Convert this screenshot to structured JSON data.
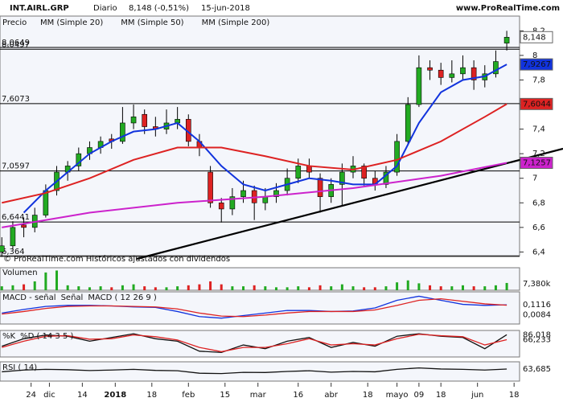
{
  "chart_data": {
    "type": "candlestick",
    "title": "INT.AIRL.GRP",
    "period": "Diario",
    "last_quote": "8,148 (-0,51%)",
    "date": "15-jun-2018",
    "site": "www.ProRealTime.com",
    "price_label": "Precio",
    "footer": "© ProRealTime.com  Históricos ajustados con dividendos",
    "up_color": "#22aa22",
    "down_color": "#dd2222",
    "x": [
      0,
      3,
      6,
      9,
      12,
      15,
      18,
      21,
      24,
      27,
      30,
      33,
      36,
      39,
      42,
      45,
      48,
      51,
      54,
      57,
      60,
      63,
      66,
      69,
      72,
      75,
      78,
      81,
      84,
      87,
      90,
      93,
      96,
      99,
      102,
      105,
      108,
      111,
      114,
      117,
      120,
      123,
      126,
      129,
      132,
      135,
      138
    ],
    "ohlc": [
      [
        6.4,
        6.52,
        6.36,
        6.45
      ],
      [
        6.45,
        6.65,
        6.42,
        6.6
      ],
      [
        6.62,
        6.68,
        6.52,
        6.6
      ],
      [
        6.6,
        6.76,
        6.56,
        6.7
      ],
      [
        6.7,
        6.95,
        6.68,
        6.9
      ],
      [
        6.9,
        7.1,
        6.86,
        7.05
      ],
      [
        7.05,
        7.14,
        6.98,
        7.1
      ],
      [
        7.1,
        7.25,
        7.06,
        7.2
      ],
      [
        7.2,
        7.3,
        7.15,
        7.25
      ],
      [
        7.25,
        7.34,
        7.2,
        7.3
      ],
      [
        7.32,
        7.36,
        7.24,
        7.3
      ],
      [
        7.3,
        7.58,
        7.28,
        7.45
      ],
      [
        7.45,
        7.6,
        7.4,
        7.5
      ],
      [
        7.52,
        7.56,
        7.36,
        7.42
      ],
      [
        7.42,
        7.5,
        7.34,
        7.4
      ],
      [
        7.4,
        7.56,
        7.36,
        7.45
      ],
      [
        7.45,
        7.58,
        7.4,
        7.48
      ],
      [
        7.48,
        7.52,
        7.26,
        7.3
      ],
      [
        7.3,
        7.36,
        7.18,
        7.25
      ],
      [
        7.05,
        7.1,
        6.76,
        6.8
      ],
      [
        6.8,
        6.84,
        6.64,
        6.75
      ],
      [
        6.75,
        6.92,
        6.7,
        6.85
      ],
      [
        6.85,
        6.98,
        6.8,
        6.9
      ],
      [
        6.9,
        6.94,
        6.66,
        6.8
      ],
      [
        6.8,
        6.92,
        6.74,
        6.85
      ],
      [
        6.85,
        6.96,
        6.8,
        6.9
      ],
      [
        6.9,
        7.08,
        6.86,
        7.0
      ],
      [
        7.0,
        7.16,
        6.96,
        7.1
      ],
      [
        7.1,
        7.16,
        7.0,
        7.05
      ],
      [
        7.0,
        7.04,
        6.72,
        6.85
      ],
      [
        6.85,
        7.0,
        6.8,
        6.95
      ],
      [
        6.95,
        7.12,
        6.78,
        7.05
      ],
      [
        7.05,
        7.18,
        7.0,
        7.1
      ],
      [
        7.1,
        7.12,
        6.94,
        7.0
      ],
      [
        7.0,
        7.06,
        6.9,
        6.95
      ],
      [
        6.95,
        7.1,
        6.92,
        7.05
      ],
      [
        7.05,
        7.36,
        7.02,
        7.3
      ],
      [
        7.3,
        7.66,
        7.28,
        7.6
      ],
      [
        7.6,
        8.0,
        7.58,
        7.9
      ],
      [
        7.9,
        7.96,
        7.8,
        7.88
      ],
      [
        7.88,
        7.94,
        7.76,
        7.82
      ],
      [
        7.82,
        7.96,
        7.78,
        7.85
      ],
      [
        7.85,
        8.0,
        7.8,
        7.9
      ],
      [
        7.9,
        7.96,
        7.72,
        7.8
      ],
      [
        7.8,
        7.92,
        7.74,
        7.85
      ],
      [
        7.85,
        8.04,
        7.82,
        7.95
      ],
      [
        8.1,
        8.2,
        8.04,
        8.148
      ]
    ],
    "xlim": [
      -0.5,
      141.5
    ],
    "xticks": [
      {
        "value": 8,
        "label": "24"
      },
      {
        "value": 13,
        "label": "dic"
      },
      {
        "value": 22,
        "label": "14"
      },
      {
        "value": 31,
        "label": "2018"
      },
      {
        "value": 41,
        "label": "18"
      },
      {
        "value": 51,
        "label": "feb"
      },
      {
        "value": 61,
        "label": "15"
      },
      {
        "value": 70,
        "label": "mar"
      },
      {
        "value": 81,
        "label": "16"
      },
      {
        "value": 90,
        "label": "abr"
      },
      {
        "value": 100,
        "label": "18"
      },
      {
        "value": 108,
        "label": "mayo"
      },
      {
        "value": 114,
        "label": "09"
      },
      {
        "value": 120,
        "label": "18"
      },
      {
        "value": 130,
        "label": "jun"
      },
      {
        "value": 140,
        "label": "18"
      }
    ],
    "ylim": [
      6.37,
      8.32
    ],
    "yticks": [
      {
        "value": 8.2,
        "label": "8,2"
      },
      {
        "value": 8,
        "label": "8"
      },
      {
        "value": 7.8,
        "label": "7,8"
      },
      {
        "value": 7.6,
        "label": "7,6"
      },
      {
        "value": 7.4,
        "label": "7,4"
      },
      {
        "value": 7.2,
        "label": "7,2"
      },
      {
        "value": 7,
        "label": "7"
      },
      {
        "value": 6.8,
        "label": "6,8"
      },
      {
        "value": 6.6,
        "label": "6,6"
      },
      {
        "value": 6.4,
        "label": "6,4"
      }
    ],
    "levels": [
      {
        "value": 8.0649,
        "label": "8,0649"
      },
      {
        "value": 8.0497,
        "label": "8,0497"
      },
      {
        "value": 7.6073,
        "label": "7,6073"
      },
      {
        "value": 7.0597,
        "label": "7,0597"
      },
      {
        "value": 6.6441,
        "label": "6,6441"
      },
      {
        "value": 6.364,
        "label": "6,364"
      }
    ],
    "series": [
      {
        "name": "MM (Simple 20)",
        "color": "#1133dd",
        "x": [
          6,
          12,
          18,
          24,
          30,
          36,
          42,
          48,
          54,
          60,
          66,
          72,
          78,
          84,
          90,
          96,
          102,
          108,
          114,
          120,
          126,
          132,
          138
        ],
        "values": [
          6.72,
          6.9,
          7.05,
          7.2,
          7.3,
          7.38,
          7.4,
          7.45,
          7.3,
          7.1,
          6.95,
          6.9,
          6.95,
          7.0,
          6.98,
          6.95,
          6.95,
          7.1,
          7.45,
          7.7,
          7.8,
          7.83,
          7.9267
        ]
      },
      {
        "name": "MM (Simple 50)",
        "color": "#dd2222",
        "x": [
          0,
          12,
          24,
          36,
          48,
          60,
          72,
          84,
          96,
          108,
          120,
          132,
          138
        ],
        "values": [
          6.8,
          6.88,
          7.0,
          7.15,
          7.25,
          7.25,
          7.18,
          7.1,
          7.07,
          7.15,
          7.3,
          7.5,
          7.6044
        ]
      },
      {
        "name": "MM (Simple 200)",
        "color": "#cc22cc",
        "x": [
          0,
          24,
          48,
          72,
          96,
          120,
          138
        ],
        "values": [
          6.6,
          6.72,
          6.8,
          6.85,
          6.92,
          7.02,
          7.1257
        ]
      }
    ],
    "price_tags": [
      {
        "value": 8.148,
        "label": "8,148",
        "color": "#ffffff"
      },
      {
        "value": 7.9267,
        "label": "7,9267",
        "color": "#1133dd"
      },
      {
        "value": 7.6044,
        "label": "7,6044",
        "color": "#dd2222"
      },
      {
        "value": 7.1257,
        "label": "7,1257",
        "color": "#cc22cc"
      }
    ],
    "volume": {
      "label": "Volumen",
      "last": "7,380k",
      "color": "#dd2222",
      "ylim": [
        0,
        22000
      ],
      "values": [
        4000,
        5000,
        6000,
        9000,
        18000,
        20000,
        5000,
        4000,
        3000,
        4000,
        3000,
        5000,
        6000,
        4000,
        3000,
        3000,
        4000,
        5000,
        6000,
        9000,
        6000,
        4000,
        4000,
        5000,
        4000,
        3000,
        3000,
        4000,
        3000,
        5000,
        4000,
        6000,
        4000,
        3000,
        3000,
        4000,
        8000,
        10000,
        7000,
        5000,
        4000,
        4000,
        5000,
        4000,
        4000,
        5000,
        7380
      ]
    },
    "macd": {
      "labels": [
        "MACD - señal",
        "Señal",
        "MACD ( 12 26 9 )"
      ],
      "ylim": [
        -0.25,
        0.35
      ],
      "x": [
        0,
        6,
        12,
        18,
        24,
        30,
        36,
        42,
        48,
        54,
        60,
        66,
        72,
        78,
        84,
        90,
        96,
        102,
        108,
        114,
        120,
        126,
        132,
        138
      ],
      "series": [
        {
          "name": "MACD",
          "color": "#1133dd",
          "values": [
            -0.05,
            0.02,
            0.08,
            0.1,
            0.1,
            0.09,
            0.07,
            0.06,
            -0.02,
            -0.12,
            -0.15,
            -0.1,
            -0.05,
            0.0,
            0.0,
            -0.02,
            -0.01,
            0.05,
            0.2,
            0.28,
            0.2,
            0.12,
            0.1,
            0.1116
          ]
        },
        {
          "name": "Señal",
          "color": "#dd2222",
          "values": [
            -0.07,
            -0.02,
            0.04,
            0.08,
            0.09,
            0.09,
            0.08,
            0.07,
            0.03,
            -0.05,
            -0.11,
            -0.12,
            -0.09,
            -0.05,
            -0.02,
            -0.02,
            -0.02,
            0.01,
            0.1,
            0.2,
            0.23,
            0.18,
            0.13,
            0.1032
          ]
        }
      ],
      "last": [
        {
          "value": 0.1116,
          "label": "0,1116"
        },
        {
          "value": 0.0084,
          "label": "0,0084"
        }
      ]
    },
    "stochastic": {
      "labels": [
        "%K",
        "%D ( 14 3 5 )"
      ],
      "ylim": [
        0,
        100
      ],
      "x": [
        0,
        6,
        12,
        18,
        24,
        30,
        36,
        42,
        48,
        54,
        60,
        66,
        72,
        78,
        84,
        90,
        96,
        102,
        108,
        114,
        120,
        126,
        132,
        138
      ],
      "series": [
        {
          "name": "%K",
          "color": "#111111",
          "values": [
            40,
            70,
            85,
            80,
            60,
            75,
            90,
            70,
            60,
            20,
            15,
            45,
            30,
            60,
            75,
            35,
            55,
            40,
            80,
            90,
            80,
            75,
            30,
            86.018
          ]
        },
        {
          "name": "%D",
          "color": "#dd2222",
          "values": [
            35,
            60,
            80,
            82,
            68,
            70,
            85,
            78,
            65,
            35,
            18,
            35,
            35,
            50,
            70,
            45,
            50,
            45,
            70,
            88,
            82,
            78,
            45,
            66.233
          ]
        }
      ],
      "last": [
        {
          "value": 86.018,
          "label": "86,018"
        },
        {
          "value": 66.233,
          "label": "66,233"
        }
      ]
    },
    "rsi": {
      "label": "RSI ( 14)",
      "color": "#111111",
      "ylim": [
        0,
        100
      ],
      "x": [
        0,
        6,
        12,
        18,
        24,
        30,
        36,
        42,
        48,
        54,
        60,
        66,
        72,
        78,
        84,
        90,
        96,
        102,
        108,
        114,
        120,
        126,
        132,
        138
      ],
      "values": [
        48,
        58,
        62,
        60,
        55,
        58,
        62,
        56,
        54,
        40,
        38,
        45,
        44,
        50,
        54,
        46,
        50,
        48,
        62,
        70,
        64,
        62,
        58,
        63.685
      ],
      "last": {
        "value": 63.685,
        "label": "63,685"
      }
    }
  }
}
